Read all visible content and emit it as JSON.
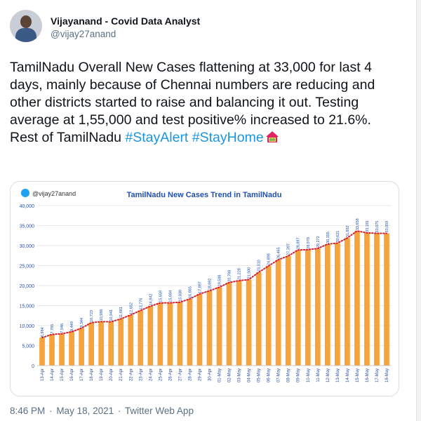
{
  "author": {
    "display_name": "Vijayanand - Covid Data Analyst",
    "handle": "@vijay27anand"
  },
  "tweet": {
    "text": "TamilNadu Overall New Cases flattening at 33,000 for last 4 days, mainly because of Chennai numbers are reducing and other districts started to raise and balancing it out. Testing average at 1,55,000 and test positive% increased to 21.6%. Rest of TamilNadu",
    "hashtags": [
      "#StayAlert",
      "#StayHome"
    ],
    "emoji_icon": "house-with-garden-icon"
  },
  "footer": {
    "time": "8:46 PM",
    "date": "May 18, 2021",
    "source": "Twitter Web App",
    "separator": "·"
  },
  "colors": {
    "hashtag": "#1b95e0",
    "bar": "#f7a33c",
    "trend": "#d4202f",
    "twitter_blue": "#1da1f2",
    "chart_title": "#1f4fb4"
  },
  "chart_data": {
    "type": "bar",
    "title": "TamilNadu New Cases Trend in TamilNadu",
    "watermark": "@vijay27anand",
    "ylim": [
      0,
      40000
    ],
    "yticks": [
      "0",
      "5,000",
      "10,000",
      "15,000",
      "20,000",
      "25,000",
      "30,000",
      "35,000",
      "40,000"
    ],
    "grid": true,
    "trendline": "dotted",
    "categories": [
      "13-Apr",
      "14-Apr",
      "15-Apr",
      "16-Apr",
      "17-Apr",
      "18-Apr",
      "19-Apr",
      "20-Apr",
      "21-Apr",
      "22-Apr",
      "23-Apr",
      "24-Apr",
      "25-Apr",
      "26-Apr",
      "27-Apr",
      "28-Apr",
      "29-Apr",
      "30-Apr",
      "01-May",
      "02-May",
      "03-May",
      "04-May",
      "05-May",
      "06-May",
      "07-May",
      "08-May",
      "09-May",
      "10-May",
      "11-May",
      "12-May",
      "13-May",
      "14-May",
      "15-May",
      "16-May",
      "17-May",
      "18-May"
    ],
    "values": [
      6984,
      7785,
      7946,
      8449,
      9344,
      10723,
      10986,
      10941,
      11681,
      12652,
      13776,
      14842,
      15659,
      15684,
      15830,
      16665,
      17897,
      18692,
      19588,
      20768,
      21228,
      21500,
      23310,
      24898,
      26465,
      27397,
      28897,
      28978,
      29272,
      30355,
      30621,
      31892,
      33658,
      33181,
      33075,
      33059
    ],
    "labels": [
      "6,984",
      "7,785",
      "7,946",
      "8,449",
      "9,344",
      "10,723",
      "10,986",
      "10,941",
      "11,681",
      "12,652",
      "13,776",
      "14,842",
      "15,659",
      "15,684",
      "15,830",
      "16,665",
      "17,897",
      "18,692",
      "19,588",
      "20,768",
      "21,228",
      "21,500",
      "23,310",
      "24,898",
      "26,465",
      "27,397",
      "28,897",
      "28,978",
      "29,272",
      "30,355",
      "30,621",
      "31,892",
      "33,658",
      "33,181",
      "33,075",
      "33,059"
    ]
  }
}
